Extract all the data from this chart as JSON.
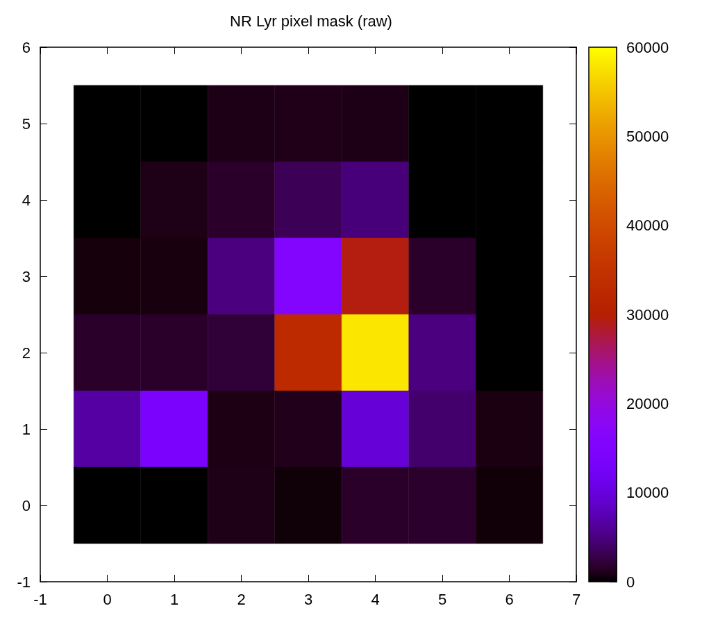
{
  "chart_data": {
    "type": "heatmap",
    "title": "NR Lyr pixel mask (raw)",
    "x": [
      0,
      1,
      2,
      3,
      4,
      5,
      6
    ],
    "y": [
      5,
      4,
      3,
      2,
      1,
      0
    ],
    "cells": [
      [
        0,
        0,
        800,
        900,
        800,
        0,
        0
      ],
      [
        0,
        850,
        1600,
        3300,
        4700,
        0,
        0
      ],
      [
        400,
        550,
        5000,
        16000,
        29400,
        1600,
        0
      ],
      [
        1600,
        1600,
        2100,
        33000,
        58000,
        5000,
        0
      ],
      [
        6600,
        14000,
        750,
        1000,
        9600,
        4200,
        650
      ],
      [
        0,
        0,
        850,
        250,
        1600,
        1700,
        300
      ]
    ],
    "xlim": [
      -1,
      7
    ],
    "xticks": [
      -1,
      0,
      1,
      2,
      3,
      4,
      5,
      6,
      7
    ],
    "ylim": [
      -1,
      6
    ],
    "yticks": [
      -1,
      0,
      1,
      2,
      3,
      4,
      5,
      6
    ],
    "clim": [
      0,
      60000
    ],
    "cticks": [
      0,
      10000,
      20000,
      30000,
      40000,
      50000,
      60000
    ],
    "grid": false
  }
}
